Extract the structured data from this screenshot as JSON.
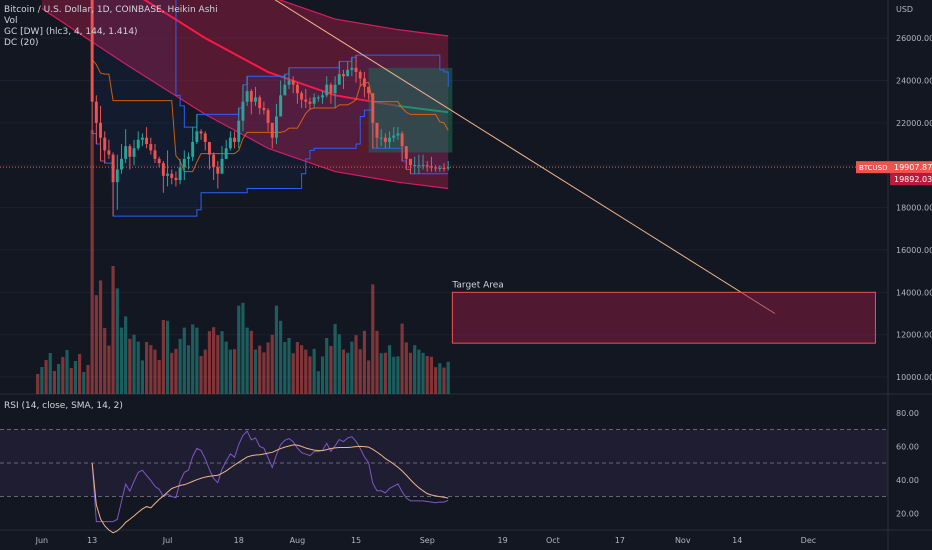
{
  "legend": {
    "symbol": "Bitcoin / U.S. Dollar, 1D, COINBASE, Heikin Ashi",
    "vol": "Vol",
    "gc": "GC [DW] (hlc3, 4, 144, 1.414)",
    "dc": "DC (20)"
  },
  "rsi_title": "RSI (14, close, SMA, 14, 2)",
  "price_axis": {
    "currency": "USD",
    "ticks": [
      "26000.00",
      "24000.00",
      "22000.00",
      "20000.00",
      "18000.00",
      "16000.00",
      "14000.00",
      "12000.00",
      "10000.00"
    ],
    "symbol_badge": "BTCUSD",
    "last_price": "19907.87",
    "second_price": "19892.03"
  },
  "rsi_axis": {
    "ticks": [
      "80.00",
      "60.00",
      "40.00",
      "20.00"
    ]
  },
  "time_axis": [
    "Jun",
    "13",
    "Jul",
    "18",
    "Aug",
    "15",
    "Sep",
    "19",
    "Oct",
    "17",
    "Nov",
    "14",
    "Dec"
  ],
  "annotation": {
    "target_label": "Target Area"
  },
  "colors": {
    "background": "#131722",
    "up": "#26a69a",
    "down": "#ef5350",
    "channel_fill": "#8e1b3f",
    "trendline": "#f0b48a",
    "rsi_line": "#7e57c2",
    "rsi_ma": "#f0b48a",
    "donchian": "#2962ff"
  },
  "chart_data": {
    "type": "candlestick",
    "candles": [
      {
        "date": "2022-06-13",
        "o": 28000,
        "h": 28500,
        "l": 21500,
        "c": 23000
      },
      {
        "date": "2022-06-14",
        "o": 23000,
        "h": 23300,
        "l": 21000,
        "c": 22000
      },
      {
        "date": "2022-06-15",
        "o": 22000,
        "h": 22800,
        "l": 20200,
        "c": 21300
      },
      {
        "date": "2022-06-16",
        "o": 21300,
        "h": 21600,
        "l": 20100,
        "c": 20700
      },
      {
        "date": "2022-06-17",
        "o": 20700,
        "h": 21200,
        "l": 20300,
        "c": 20500
      },
      {
        "date": "2022-06-18",
        "o": 20500,
        "h": 20600,
        "l": 17600,
        "c": 19200
      },
      {
        "date": "2022-06-19",
        "o": 19200,
        "h": 20500,
        "l": 17900,
        "c": 19800
      },
      {
        "date": "2022-06-20",
        "o": 19800,
        "h": 21000,
        "l": 19600,
        "c": 20300
      },
      {
        "date": "2022-06-21",
        "o": 20300,
        "h": 21700,
        "l": 20100,
        "c": 20900
      },
      {
        "date": "2022-06-22",
        "o": 20900,
        "h": 21000,
        "l": 19800,
        "c": 20400
      },
      {
        "date": "2022-06-23",
        "o": 20400,
        "h": 21200,
        "l": 20000,
        "c": 20800
      },
      {
        "date": "2022-06-24",
        "o": 20800,
        "h": 21600,
        "l": 20700,
        "c": 21200
      },
      {
        "date": "2022-06-25",
        "o": 21200,
        "h": 21500,
        "l": 20900,
        "c": 21300
      },
      {
        "date": "2022-06-26",
        "o": 21300,
        "h": 21800,
        "l": 20800,
        "c": 21000
      },
      {
        "date": "2022-06-27",
        "o": 21000,
        "h": 21300,
        "l": 20500,
        "c": 20700
      },
      {
        "date": "2022-06-28",
        "o": 20700,
        "h": 21000,
        "l": 20100,
        "c": 20300
      },
      {
        "date": "2022-06-29",
        "o": 20300,
        "h": 20400,
        "l": 19900,
        "c": 20100
      },
      {
        "date": "2022-06-30",
        "o": 20100,
        "h": 20200,
        "l": 18700,
        "c": 19500
      },
      {
        "date": "2022-07-01",
        "o": 19500,
        "h": 20700,
        "l": 19000,
        "c": 19600
      },
      {
        "date": "2022-07-02",
        "o": 19600,
        "h": 19800,
        "l": 19100,
        "c": 19400
      },
      {
        "date": "2022-07-03",
        "o": 19400,
        "h": 19700,
        "l": 19000,
        "c": 19300
      },
      {
        "date": "2022-07-04",
        "o": 19300,
        "h": 20300,
        "l": 19100,
        "c": 19900
      },
      {
        "date": "2022-07-05",
        "o": 19900,
        "h": 20700,
        "l": 19300,
        "c": 20300
      },
      {
        "date": "2022-07-06",
        "o": 20300,
        "h": 20600,
        "l": 19800,
        "c": 20400
      },
      {
        "date": "2022-07-07",
        "o": 20400,
        "h": 21800,
        "l": 20200,
        "c": 21100
      },
      {
        "date": "2022-07-08",
        "o": 21100,
        "h": 22400,
        "l": 21000,
        "c": 21600
      },
      {
        "date": "2022-07-09",
        "o": 21600,
        "h": 21700,
        "l": 21200,
        "c": 21500
      },
      {
        "date": "2022-07-10",
        "o": 21500,
        "h": 21600,
        "l": 20700,
        "c": 21100
      },
      {
        "date": "2022-07-11",
        "o": 21100,
        "h": 21100,
        "l": 19800,
        "c": 20500
      },
      {
        "date": "2022-07-12",
        "o": 20500,
        "h": 20600,
        "l": 19300,
        "c": 19900
      },
      {
        "date": "2022-07-13",
        "o": 19900,
        "h": 20200,
        "l": 18900,
        "c": 19600
      },
      {
        "date": "2022-07-14",
        "o": 19600,
        "h": 20900,
        "l": 19600,
        "c": 20300
      },
      {
        "date": "2022-07-15",
        "o": 20300,
        "h": 21200,
        "l": 20300,
        "c": 20800
      },
      {
        "date": "2022-07-16",
        "o": 20800,
        "h": 21600,
        "l": 20700,
        "c": 21300
      },
      {
        "date": "2022-07-17",
        "o": 21300,
        "h": 21600,
        "l": 20800,
        "c": 21100
      },
      {
        "date": "2022-07-18",
        "o": 21100,
        "h": 22700,
        "l": 20800,
        "c": 22100
      },
      {
        "date": "2022-07-19",
        "o": 22100,
        "h": 23800,
        "l": 21600,
        "c": 23000
      },
      {
        "date": "2022-07-20",
        "o": 23000,
        "h": 24200,
        "l": 22800,
        "c": 23500
      },
      {
        "date": "2022-07-21",
        "o": 23500,
        "h": 23600,
        "l": 22400,
        "c": 23000
      },
      {
        "date": "2022-07-22",
        "o": 23000,
        "h": 23700,
        "l": 22800,
        "c": 23200
      },
      {
        "date": "2022-07-23",
        "o": 23200,
        "h": 23300,
        "l": 22400,
        "c": 22700
      },
      {
        "date": "2022-07-24",
        "o": 22700,
        "h": 23000,
        "l": 22400,
        "c": 22600
      },
      {
        "date": "2022-07-25",
        "o": 22600,
        "h": 22700,
        "l": 21600,
        "c": 22000
      },
      {
        "date": "2022-07-26",
        "o": 22000,
        "h": 22000,
        "l": 20800,
        "c": 21300
      },
      {
        "date": "2022-07-27",
        "o": 21300,
        "h": 22900,
        "l": 21000,
        "c": 22300
      },
      {
        "date": "2022-07-28",
        "o": 22300,
        "h": 24000,
        "l": 22300,
        "c": 23300
      },
      {
        "date": "2022-07-29",
        "o": 23300,
        "h": 24300,
        "l": 23300,
        "c": 23800
      },
      {
        "date": "2022-07-30",
        "o": 23800,
        "h": 24600,
        "l": 23600,
        "c": 24000
      },
      {
        "date": "2022-07-31",
        "o": 24000,
        "h": 24200,
        "l": 23400,
        "c": 23800
      },
      {
        "date": "2022-08-01",
        "o": 23800,
        "h": 23900,
        "l": 22900,
        "c": 23400
      },
      {
        "date": "2022-08-02",
        "o": 23400,
        "h": 23500,
        "l": 22700,
        "c": 23100
      },
      {
        "date": "2022-08-03",
        "o": 23100,
        "h": 23600,
        "l": 22700,
        "c": 23000
      },
      {
        "date": "2022-08-04",
        "o": 23000,
        "h": 23200,
        "l": 22600,
        "c": 22900
      },
      {
        "date": "2022-08-05",
        "o": 22900,
        "h": 23400,
        "l": 22700,
        "c": 23200
      },
      {
        "date": "2022-08-06",
        "o": 23200,
        "h": 23300,
        "l": 23000,
        "c": 23200
      },
      {
        "date": "2022-08-07",
        "o": 23200,
        "h": 23500,
        "l": 22900,
        "c": 23300
      },
      {
        "date": "2022-08-08",
        "o": 23300,
        "h": 24200,
        "l": 23200,
        "c": 23800
      },
      {
        "date": "2022-08-09",
        "o": 23800,
        "h": 23900,
        "l": 22900,
        "c": 23400
      },
      {
        "date": "2022-08-10",
        "o": 23400,
        "h": 24200,
        "l": 22700,
        "c": 23800
      },
      {
        "date": "2022-08-11",
        "o": 23800,
        "h": 24900,
        "l": 23800,
        "c": 24300
      },
      {
        "date": "2022-08-12",
        "o": 24300,
        "h": 24500,
        "l": 23600,
        "c": 24200
      },
      {
        "date": "2022-08-13",
        "o": 24200,
        "h": 24900,
        "l": 24200,
        "c": 24500
      },
      {
        "date": "2022-08-14",
        "o": 24500,
        "h": 25100,
        "l": 24200,
        "c": 24600
      },
      {
        "date": "2022-08-15",
        "o": 24600,
        "h": 25200,
        "l": 23900,
        "c": 24400
      },
      {
        "date": "2022-08-16",
        "o": 24400,
        "h": 24500,
        "l": 23700,
        "c": 24100
      },
      {
        "date": "2022-08-17",
        "o": 24100,
        "h": 24400,
        "l": 23200,
        "c": 23700
      },
      {
        "date": "2022-08-18",
        "o": 23700,
        "h": 23700,
        "l": 23100,
        "c": 23400
      },
      {
        "date": "2022-08-19",
        "o": 23400,
        "h": 23400,
        "l": 20800,
        "c": 22000
      },
      {
        "date": "2022-08-20",
        "o": 22000,
        "h": 22000,
        "l": 20800,
        "c": 21300
      },
      {
        "date": "2022-08-21",
        "o": 21300,
        "h": 21700,
        "l": 20900,
        "c": 21300
      },
      {
        "date": "2022-08-22",
        "o": 21300,
        "h": 21500,
        "l": 20800,
        "c": 21100
      },
      {
        "date": "2022-08-23",
        "o": 21100,
        "h": 21600,
        "l": 20800,
        "c": 21300
      },
      {
        "date": "2022-08-24",
        "o": 21300,
        "h": 21800,
        "l": 21100,
        "c": 21400
      },
      {
        "date": "2022-08-25",
        "o": 21400,
        "h": 21800,
        "l": 21200,
        "c": 21500
      },
      {
        "date": "2022-08-26",
        "o": 21500,
        "h": 21600,
        "l": 20200,
        "c": 20900
      },
      {
        "date": "2022-08-27",
        "o": 20900,
        "h": 20900,
        "l": 19800,
        "c": 20300
      },
      {
        "date": "2022-08-28",
        "o": 20300,
        "h": 20300,
        "l": 19600,
        "c": 20000
      },
      {
        "date": "2022-08-29",
        "o": 20000,
        "h": 20400,
        "l": 19600,
        "c": 20000
      },
      {
        "date": "2022-08-30",
        "o": 20000,
        "h": 20500,
        "l": 19600,
        "c": 20000
      },
      {
        "date": "2022-08-31",
        "o": 20000,
        "h": 20500,
        "l": 19800,
        "c": 20000
      },
      {
        "date": "2022-09-01",
        "o": 20000,
        "h": 20200,
        "l": 19700,
        "c": 19950
      },
      {
        "date": "2022-09-02",
        "o": 19950,
        "h": 20400,
        "l": 19700,
        "c": 19900
      },
      {
        "date": "2022-09-03",
        "o": 19900,
        "h": 20000,
        "l": 19700,
        "c": 19850
      },
      {
        "date": "2022-09-04",
        "o": 19850,
        "h": 20000,
        "l": 19700,
        "c": 19870
      },
      {
        "date": "2022-09-05",
        "o": 19870,
        "h": 20100,
        "l": 19700,
        "c": 19860
      },
      {
        "date": "2022-09-06",
        "o": 19860,
        "h": 20200,
        "l": 19750,
        "c": 19900
      }
    ],
    "y_range": [
      9200,
      27800
    ],
    "x_range": [
      "2022-05-22",
      "2022-12-20"
    ],
    "target_area": {
      "from": "2022-09-07",
      "to": "2022-12-17",
      "top": 14000,
      "bottom": 11600
    },
    "trendline": {
      "from": {
        "date": "2022-07-05",
        "price": 30500
      },
      "to": {
        "date": "2022-11-23",
        "price": 13000
      }
    },
    "rsi": {
      "y_range": [
        10,
        90
      ],
      "bands": [
        30,
        50,
        70
      ]
    }
  }
}
